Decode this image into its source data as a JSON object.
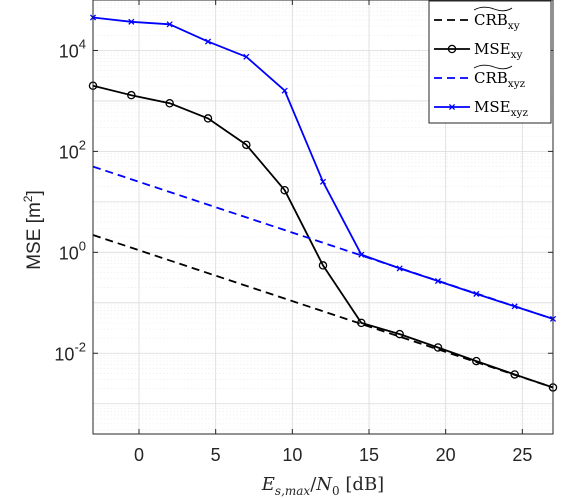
{
  "chart_data": {
    "type": "line",
    "xlabel": "E_{s,max}/N_0 [dB]",
    "xlabel_parts": {
      "e": "E",
      "sub": "s,max",
      "slash": "/",
      "n": "N",
      "nsub": "0",
      "unit": " [dB]"
    },
    "ylabel": "MSE [m^2]",
    "ylabel_parts": {
      "base": "MSE [m",
      "sup": "2",
      "close": "]"
    },
    "xlim": [
      -3,
      27
    ],
    "ylim_log10": [
      -3.6,
      5
    ],
    "y_scale": "log",
    "grid": true,
    "legend_position": "top-right",
    "x_ticks": [
      0,
      5,
      10,
      15,
      20,
      25
    ],
    "x_tick_labels": [
      "0",
      "5",
      "10",
      "15",
      "20",
      "25"
    ],
    "y_tick_exponents": [
      -2,
      0,
      2,
      4
    ],
    "y_tick_labels": [
      {
        "base": "10",
        "exp": "-2"
      },
      {
        "base": "10",
        "exp": "0"
      },
      {
        "base": "10",
        "exp": "2"
      },
      {
        "base": "10",
        "exp": "4"
      }
    ],
    "series": [
      {
        "name": "CRB_xy",
        "legend": {
          "base": "CRB",
          "sub": "xy",
          "tilde": true
        },
        "color": "#000000",
        "dash": true,
        "marker": "none",
        "x": [
          -3,
          27
        ],
        "y": [
          2.2,
          0.0021
        ]
      },
      {
        "name": "MSE_xy",
        "legend": {
          "base": "MSE",
          "sub": "xy",
          "tilde": false
        },
        "color": "#000000",
        "dash": false,
        "marker": "circle",
        "x": [
          -3,
          -0.5,
          2,
          4.5,
          7,
          9.5,
          12,
          14.5,
          17,
          19.5,
          22,
          24.5,
          27
        ],
        "y": [
          2000,
          1300,
          900,
          450,
          135,
          17,
          0.55,
          0.04,
          0.024,
          0.013,
          0.007,
          0.0038,
          0.0021
        ]
      },
      {
        "name": "CRB_xyz",
        "legend": {
          "base": "CRB",
          "sub": "xyz",
          "tilde": true
        },
        "color": "#0000ff",
        "dash": true,
        "marker": "none",
        "x": [
          -3,
          27
        ],
        "y": [
          50,
          0.048
        ]
      },
      {
        "name": "MSE_xyz",
        "legend": {
          "base": "MSE",
          "sub": "xyz",
          "tilde": false
        },
        "color": "#0000ff",
        "dash": false,
        "marker": "x",
        "x": [
          -3,
          -0.5,
          2,
          4.5,
          7,
          9.5,
          12,
          14.5,
          17,
          19.5,
          22,
          24.5,
          27
        ],
        "y": [
          45000,
          37000,
          33000,
          15000,
          7500,
          1600,
          25,
          0.9,
          0.48,
          0.27,
          0.15,
          0.085,
          0.048
        ]
      }
    ]
  }
}
